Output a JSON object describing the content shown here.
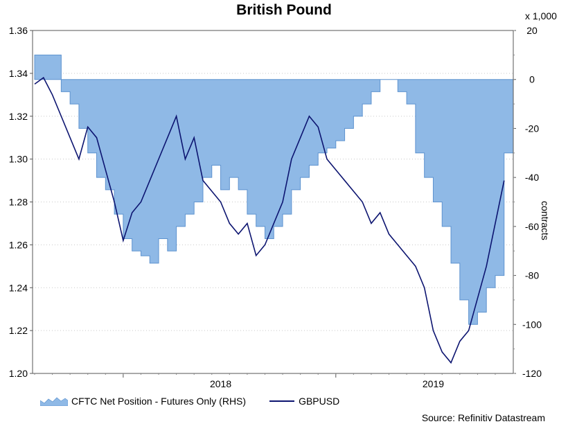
{
  "chart_data": {
    "type": "line",
    "title": "British Pound",
    "y2_units": "x 1,000",
    "y2_label": "contracts",
    "source": "Source: Refinitiv Datastream",
    "x_tick_labels": [
      "2018",
      "2019"
    ],
    "y_left": {
      "ylim": [
        1.2,
        1.36
      ],
      "ticks": [
        "1.20",
        "1.22",
        "1.24",
        "1.26",
        "1.28",
        "1.30",
        "1.32",
        "1.34",
        "1.36"
      ]
    },
    "y_right": {
      "ylim": [
        -120,
        20
      ],
      "ticks": [
        "-120",
        "-100",
        "-80",
        "-60",
        "-40",
        "-20",
        "0",
        "20"
      ]
    },
    "colors": {
      "area_fill": "#8fb9e6",
      "area_stroke": "#5e93cf",
      "line": "#0c1470"
    },
    "legend_position": "bottom",
    "series": [
      {
        "name": "CFTC Net Position - Futures Only (RHS)",
        "type": "area",
        "axis": "right",
        "x": [
          "2017-08",
          "2017-08",
          "2017-09",
          "2017-09",
          "2017-10",
          "2017-10",
          "2017-11",
          "2017-11",
          "2017-12",
          "2017-12",
          "2018-01",
          "2018-01",
          "2018-02",
          "2018-02",
          "2018-03",
          "2018-03",
          "2018-04",
          "2018-04",
          "2018-05",
          "2018-05",
          "2018-06",
          "2018-06",
          "2018-07",
          "2018-07",
          "2018-08",
          "2018-08",
          "2018-09",
          "2018-09",
          "2018-10",
          "2018-10",
          "2018-11",
          "2018-11",
          "2018-12",
          "2018-12",
          "2019-01",
          "2019-01",
          "2019-02",
          "2019-02",
          "2019-03",
          "2019-03",
          "2019-04",
          "2019-04",
          "2019-05",
          "2019-05",
          "2019-06",
          "2019-06",
          "2019-07",
          "2019-07",
          "2019-08",
          "2019-08",
          "2019-09",
          "2019-09",
          "2019-10",
          "2019-10"
        ],
        "values": [
          10,
          10,
          10,
          -5,
          -10,
          -20,
          -30,
          -40,
          -45,
          -55,
          -65,
          -70,
          -72,
          -75,
          -65,
          -70,
          -60,
          -55,
          -50,
          -40,
          -35,
          -45,
          -40,
          -45,
          -55,
          -60,
          -65,
          -60,
          -55,
          -45,
          -40,
          -35,
          -30,
          -28,
          -25,
          -20,
          -15,
          -10,
          -5,
          0,
          0,
          -5,
          -10,
          -30,
          -40,
          -50,
          -60,
          -75,
          -90,
          -100,
          -95,
          -85,
          -80,
          -30
        ]
      },
      {
        "name": "GBPUSD",
        "type": "line",
        "axis": "left",
        "x": [
          "2017-08",
          "2017-08",
          "2017-09",
          "2017-09",
          "2017-10",
          "2017-10",
          "2017-11",
          "2017-11",
          "2017-12",
          "2017-12",
          "2018-01",
          "2018-01",
          "2018-02",
          "2018-02",
          "2018-03",
          "2018-03",
          "2018-04",
          "2018-04",
          "2018-05",
          "2018-05",
          "2018-06",
          "2018-06",
          "2018-07",
          "2018-07",
          "2018-08",
          "2018-08",
          "2018-09",
          "2018-09",
          "2018-10",
          "2018-10",
          "2018-11",
          "2018-11",
          "2018-12",
          "2018-12",
          "2019-01",
          "2019-01",
          "2019-02",
          "2019-02",
          "2019-03",
          "2019-03",
          "2019-04",
          "2019-04",
          "2019-05",
          "2019-05",
          "2019-06",
          "2019-06",
          "2019-07",
          "2019-07",
          "2019-08",
          "2019-08",
          "2019-09",
          "2019-09",
          "2019-10",
          "2019-10"
        ],
        "values": [
          1.335,
          1.338,
          1.33,
          1.32,
          1.31,
          1.3,
          1.315,
          1.31,
          1.295,
          1.28,
          1.262,
          1.275,
          1.28,
          1.29,
          1.3,
          1.31,
          1.32,
          1.3,
          1.31,
          1.29,
          1.285,
          1.28,
          1.27,
          1.265,
          1.27,
          1.255,
          1.26,
          1.27,
          1.28,
          1.3,
          1.31,
          1.32,
          1.315,
          1.3,
          1.295,
          1.29,
          1.285,
          1.28,
          1.27,
          1.275,
          1.265,
          1.26,
          1.255,
          1.25,
          1.24,
          1.22,
          1.21,
          1.205,
          1.215,
          1.22,
          1.235,
          1.25,
          1.27,
          1.29
        ]
      }
    ]
  }
}
